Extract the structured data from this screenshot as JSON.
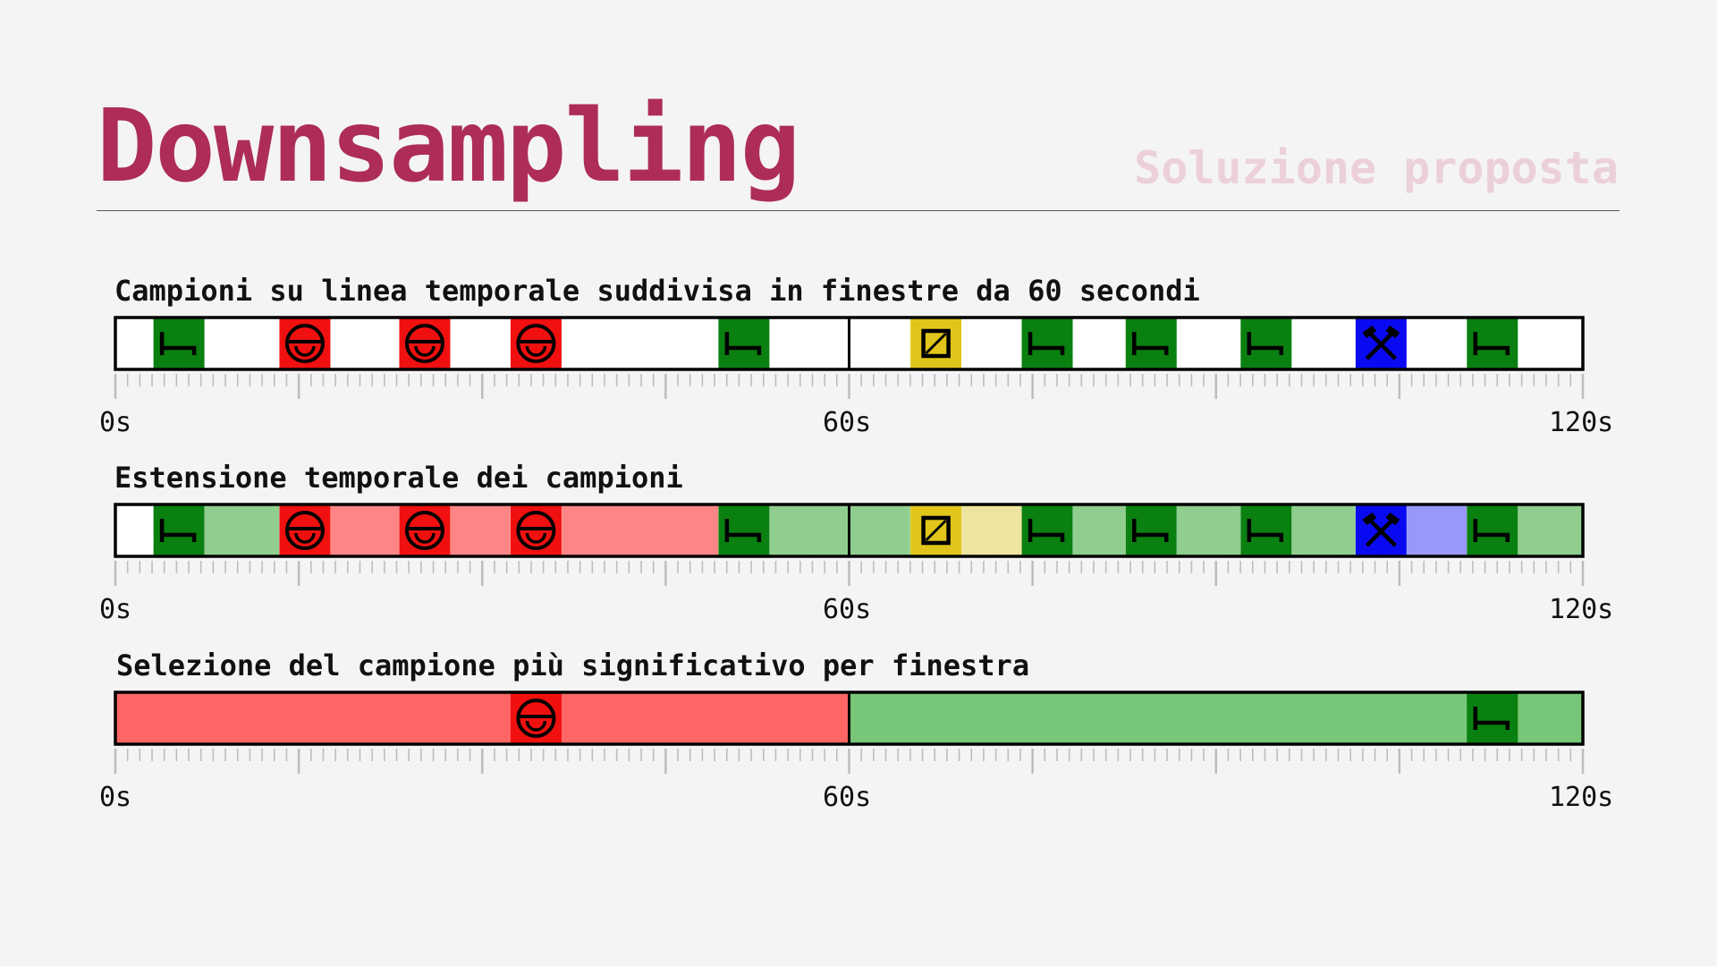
{
  "header": {
    "title": "Downsampling",
    "subtitle": "Soluzione proposta"
  },
  "colors": {
    "title": "#ad2d58",
    "subtitle": "#ecd0d9",
    "green": "#0a8010",
    "red": "#f01010",
    "yellow": "#e0c61a",
    "blue": "#0a0af2"
  },
  "timelines": [
    {
      "title": "Campioni su linea temporale suddivisa in finestre da 60 secondi",
      "axis": {
        "min": 0,
        "max": 120,
        "divider_at": 60,
        "labels": [
          "0s",
          "60s",
          "120s"
        ]
      },
      "extensions": [],
      "samples": [
        {
          "t": 5.2,
          "kind": "bed",
          "color": "#0a8010",
          "icon": "bed-icon"
        },
        {
          "t": 15.5,
          "kind": "stop",
          "color": "#f01010",
          "icon": "no-entry-icon"
        },
        {
          "t": 25.3,
          "kind": "stop",
          "color": "#f01010",
          "icon": "no-entry-icon"
        },
        {
          "t": 34.4,
          "kind": "stop",
          "color": "#f01010",
          "icon": "no-entry-icon"
        },
        {
          "t": 51.4,
          "kind": "bed",
          "color": "#0a8010",
          "icon": "bed-icon"
        },
        {
          "t": 67.1,
          "kind": "box",
          "color": "#e0c61a",
          "icon": "slashed-square-icon"
        },
        {
          "t": 76.2,
          "kind": "bed",
          "color": "#0a8010",
          "icon": "bed-icon"
        },
        {
          "t": 84.7,
          "kind": "bed",
          "color": "#0a8010",
          "icon": "bed-icon"
        },
        {
          "t": 94.1,
          "kind": "bed",
          "color": "#0a8010",
          "icon": "bed-icon"
        },
        {
          "t": 103.5,
          "kind": "tools",
          "color": "#0a0af2",
          "icon": "hammer-pick-icon"
        },
        {
          "t": 112.6,
          "kind": "bed",
          "color": "#0a8010",
          "icon": "bed-icon"
        }
      ]
    },
    {
      "title": "Estensione temporale dei campioni",
      "axis": {
        "min": 0,
        "max": 120,
        "divider_at": 60,
        "labels": [
          "0s",
          "60s",
          "120s"
        ]
      },
      "extensions": [
        {
          "from": 7.3,
          "to": 13.4,
          "color": "#8fce8f"
        },
        {
          "from": 17.6,
          "to": 23.2,
          "color": "#fd8585"
        },
        {
          "from": 27.4,
          "to": 32.3,
          "color": "#fd8585"
        },
        {
          "from": 36.5,
          "to": 49.3,
          "color": "#fd8585"
        },
        {
          "from": 53.5,
          "to": 60,
          "color": "#8fce8f"
        },
        {
          "from": 60,
          "to": 65,
          "color": "#8fce8f"
        },
        {
          "from": 69.2,
          "to": 74.1,
          "color": "#ede49f"
        },
        {
          "from": 78.3,
          "to": 82.6,
          "color": "#8fce8f"
        },
        {
          "from": 86.8,
          "to": 92,
          "color": "#8fce8f"
        },
        {
          "from": 96.2,
          "to": 101.4,
          "color": "#8fce8f"
        },
        {
          "from": 105.6,
          "to": 110.5,
          "color": "#9898fb"
        },
        {
          "from": 114.7,
          "to": 120,
          "color": "#8fce8f"
        }
      ],
      "samples": [
        {
          "t": 5.2,
          "kind": "bed",
          "color": "#0a8010",
          "icon": "bed-icon"
        },
        {
          "t": 15.5,
          "kind": "stop",
          "color": "#f01010",
          "icon": "no-entry-icon"
        },
        {
          "t": 25.3,
          "kind": "stop",
          "color": "#f01010",
          "icon": "no-entry-icon"
        },
        {
          "t": 34.4,
          "kind": "stop",
          "color": "#f01010",
          "icon": "no-entry-icon"
        },
        {
          "t": 51.4,
          "kind": "bed",
          "color": "#0a8010",
          "icon": "bed-icon"
        },
        {
          "t": 67.1,
          "kind": "box",
          "color": "#e0c61a",
          "icon": "slashed-square-icon"
        },
        {
          "t": 76.2,
          "kind": "bed",
          "color": "#0a8010",
          "icon": "bed-icon"
        },
        {
          "t": 84.7,
          "kind": "bed",
          "color": "#0a8010",
          "icon": "bed-icon"
        },
        {
          "t": 94.1,
          "kind": "bed",
          "color": "#0a8010",
          "icon": "bed-icon"
        },
        {
          "t": 103.5,
          "kind": "tools",
          "color": "#0a0af2",
          "icon": "hammer-pick-icon"
        },
        {
          "t": 112.6,
          "kind": "bed",
          "color": "#0a8010",
          "icon": "bed-icon"
        }
      ]
    },
    {
      "title": "Selezione del campione più significativo per finestra",
      "axis": {
        "min": 0,
        "max": 120,
        "divider_at": 60,
        "labels": [
          "0s",
          "60s",
          "120s"
        ]
      },
      "extensions": [
        {
          "from": 0,
          "to": 60,
          "color": "#fe6666"
        },
        {
          "from": 60,
          "to": 120,
          "color": "#78c678"
        }
      ],
      "samples": [
        {
          "t": 34.4,
          "kind": "stop",
          "color": "#f01010",
          "icon": "no-entry-icon"
        },
        {
          "t": 112.6,
          "kind": "bed",
          "color": "#0a8010",
          "icon": "bed-icon"
        }
      ]
    }
  ]
}
